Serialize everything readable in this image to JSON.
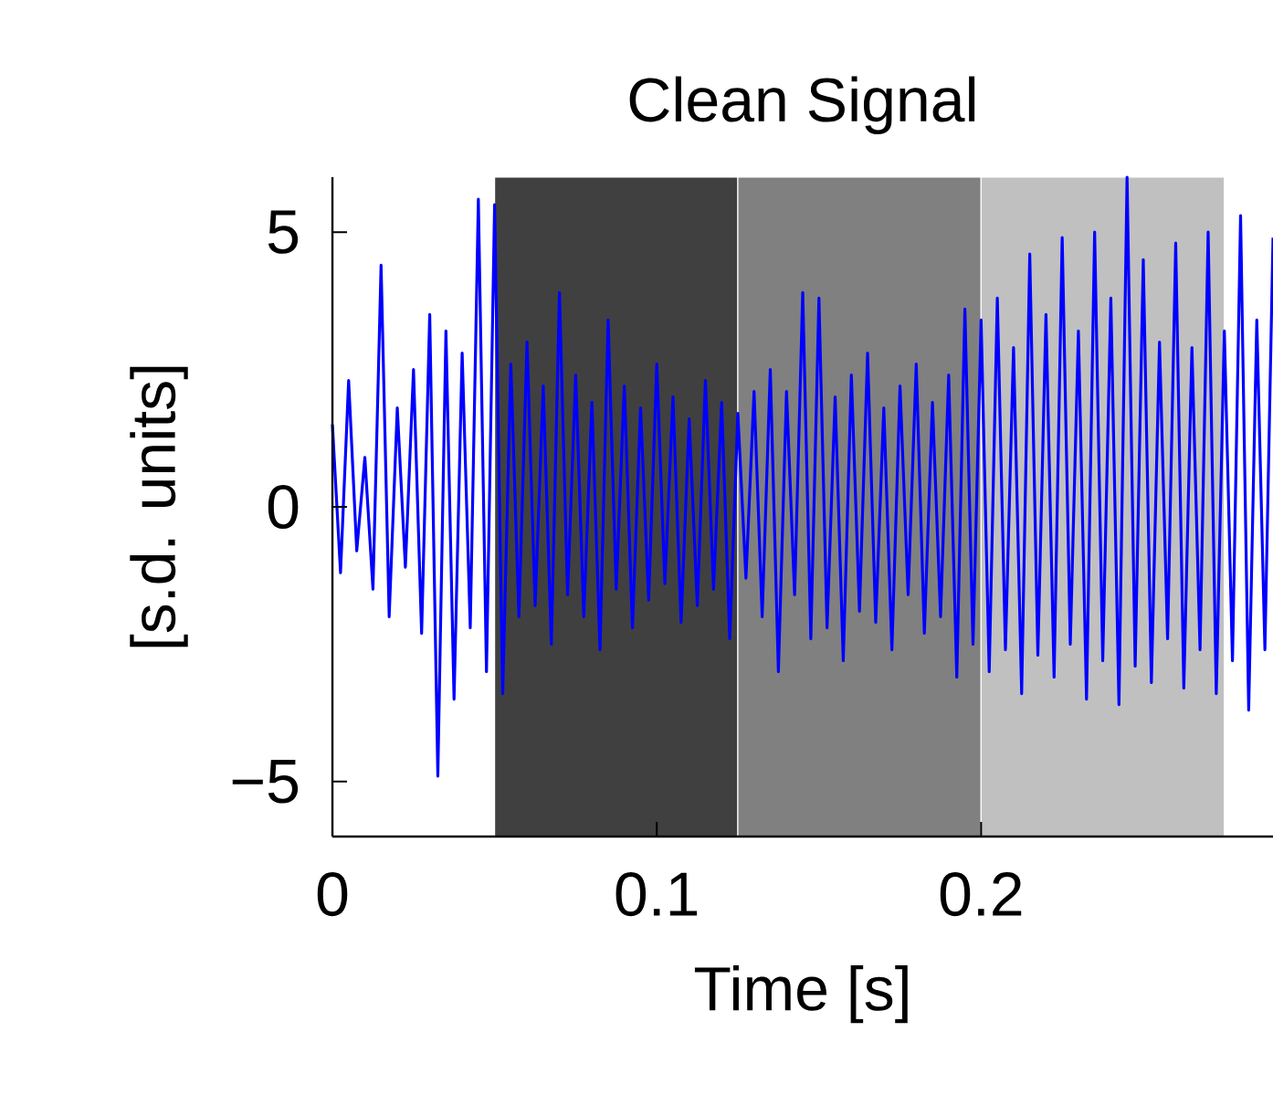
{
  "chart_data": {
    "type": "line",
    "title": "Clean Signal",
    "xlabel": "Time [s]",
    "ylabel": "[s.d. units]",
    "xlim": [
      0,
      0.29
    ],
    "ylim": [
      -6,
      6
    ],
    "xticks": [
      0,
      0.1,
      0.2
    ],
    "yticks": [
      {
        "value": -5,
        "label": "−5"
      },
      0,
      5
    ],
    "grid": false,
    "legend": false,
    "marker": "none",
    "line_style": "solid",
    "bands": [
      {
        "axis": "x",
        "from": 0.05,
        "to": 0.125,
        "color": "#404040"
      },
      {
        "axis": "x",
        "from": 0.125,
        "to": 0.2,
        "color": "#808080"
      },
      {
        "axis": "x",
        "from": 0.2,
        "to": 0.275,
        "color": "#c0c0c0"
      }
    ],
    "x": [
      0,
      0.0025,
      0.005,
      0.0075,
      0.01,
      0.0125,
      0.015,
      0.0175,
      0.02,
      0.0225,
      0.025,
      0.0275,
      0.03,
      0.0325,
      0.035,
      0.0375,
      0.04,
      0.0425,
      0.045,
      0.0475,
      0.05,
      0.0525,
      0.055,
      0.0575,
      0.06,
      0.0625,
      0.065,
      0.0675,
      0.07,
      0.0725,
      0.075,
      0.0775,
      0.08,
      0.0825,
      0.085,
      0.0875,
      0.09,
      0.0925,
      0.095,
      0.0975,
      0.1,
      0.1025,
      0.105,
      0.1075,
      0.11,
      0.1125,
      0.115,
      0.1175,
      0.12,
      0.1225,
      0.125,
      0.1275,
      0.13,
      0.1325,
      0.135,
      0.1375,
      0.14,
      0.1425,
      0.145,
      0.1475,
      0.15,
      0.1525,
      0.155,
      0.1575,
      0.16,
      0.1625,
      0.165,
      0.1675,
      0.17,
      0.1725,
      0.175,
      0.1775,
      0.18,
      0.1825,
      0.185,
      0.1875,
      0.19,
      0.1925,
      0.195,
      0.1975,
      0.2,
      0.2025,
      0.205,
      0.2075,
      0.21,
      0.2125,
      0.215,
      0.2175,
      0.22,
      0.2225,
      0.225,
      0.2275,
      0.23,
      0.2325,
      0.235,
      0.2375,
      0.24,
      0.2425,
      0.245,
      0.2475,
      0.25,
      0.2525,
      0.255,
      0.2575,
      0.26,
      0.2625,
      0.265,
      0.2675,
      0.27,
      0.2725,
      0.275,
      0.2775,
      0.28,
      0.2825,
      0.285,
      0.2875,
      0.29
    ],
    "series": [
      {
        "color": "#0000ff",
        "values": [
          1.5,
          -1.2,
          2.3,
          -0.8,
          0.9,
          -1.5,
          4.4,
          -2.0,
          1.8,
          -1.1,
          2.5,
          -2.3,
          3.5,
          -4.9,
          3.2,
          -3.5,
          2.8,
          -2.2,
          5.6,
          -3.0,
          5.5,
          -3.4,
          2.6,
          -2.0,
          3.0,
          -1.8,
          2.2,
          -2.5,
          3.9,
          -1.6,
          2.4,
          -2.0,
          1.9,
          -2.6,
          3.4,
          -1.5,
          2.2,
          -2.2,
          1.8,
          -1.7,
          2.6,
          -1.4,
          2.0,
          -2.1,
          1.6,
          -1.8,
          2.3,
          -1.5,
          1.9,
          -2.4,
          1.7,
          -1.3,
          2.1,
          -2.0,
          2.5,
          -3.0,
          2.1,
          -1.6,
          3.9,
          -2.4,
          3.8,
          -2.2,
          2.0,
          -2.8,
          2.4,
          -1.9,
          2.8,
          -2.1,
          1.8,
          -2.6,
          2.2,
          -1.6,
          2.6,
          -2.3,
          1.9,
          -2.0,
          2.4,
          -3.1,
          3.6,
          -2.5,
          3.4,
          -3.0,
          3.8,
          -2.6,
          2.9,
          -3.4,
          4.6,
          -2.7,
          3.5,
          -3.1,
          4.9,
          -2.5,
          3.2,
          -3.5,
          5.0,
          -2.8,
          3.8,
          -3.6,
          6.0,
          -2.9,
          4.5,
          -3.2,
          3.0,
          -2.4,
          4.8,
          -3.3,
          2.9,
          -2.6,
          5.0,
          -3.4,
          3.2,
          -2.8,
          5.3,
          -3.7,
          3.4,
          -2.6,
          4.9
        ]
      }
    ]
  }
}
